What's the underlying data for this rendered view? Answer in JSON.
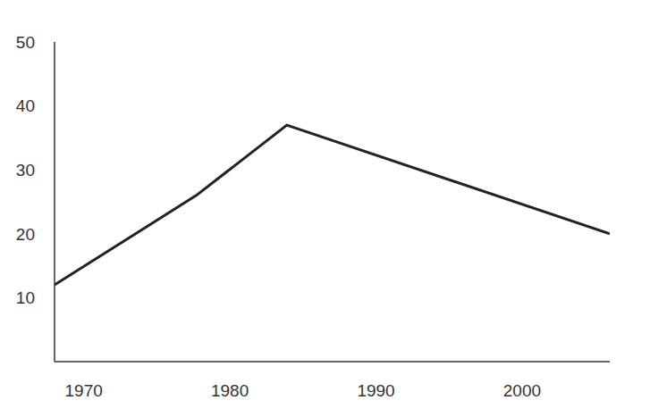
{
  "chart_data": {
    "type": "line",
    "x": [
      1968,
      1977.7,
      1983.9,
      2006
    ],
    "values": [
      12,
      26,
      37,
      20
    ],
    "color": "#222222",
    "xlim": [
      1968,
      2006
    ],
    "xticks": [
      1970,
      1980,
      1990,
      2000
    ],
    "ylim": [
      0,
      50
    ],
    "yticks": [
      10,
      20,
      30,
      40,
      50
    ],
    "grid": false
  }
}
